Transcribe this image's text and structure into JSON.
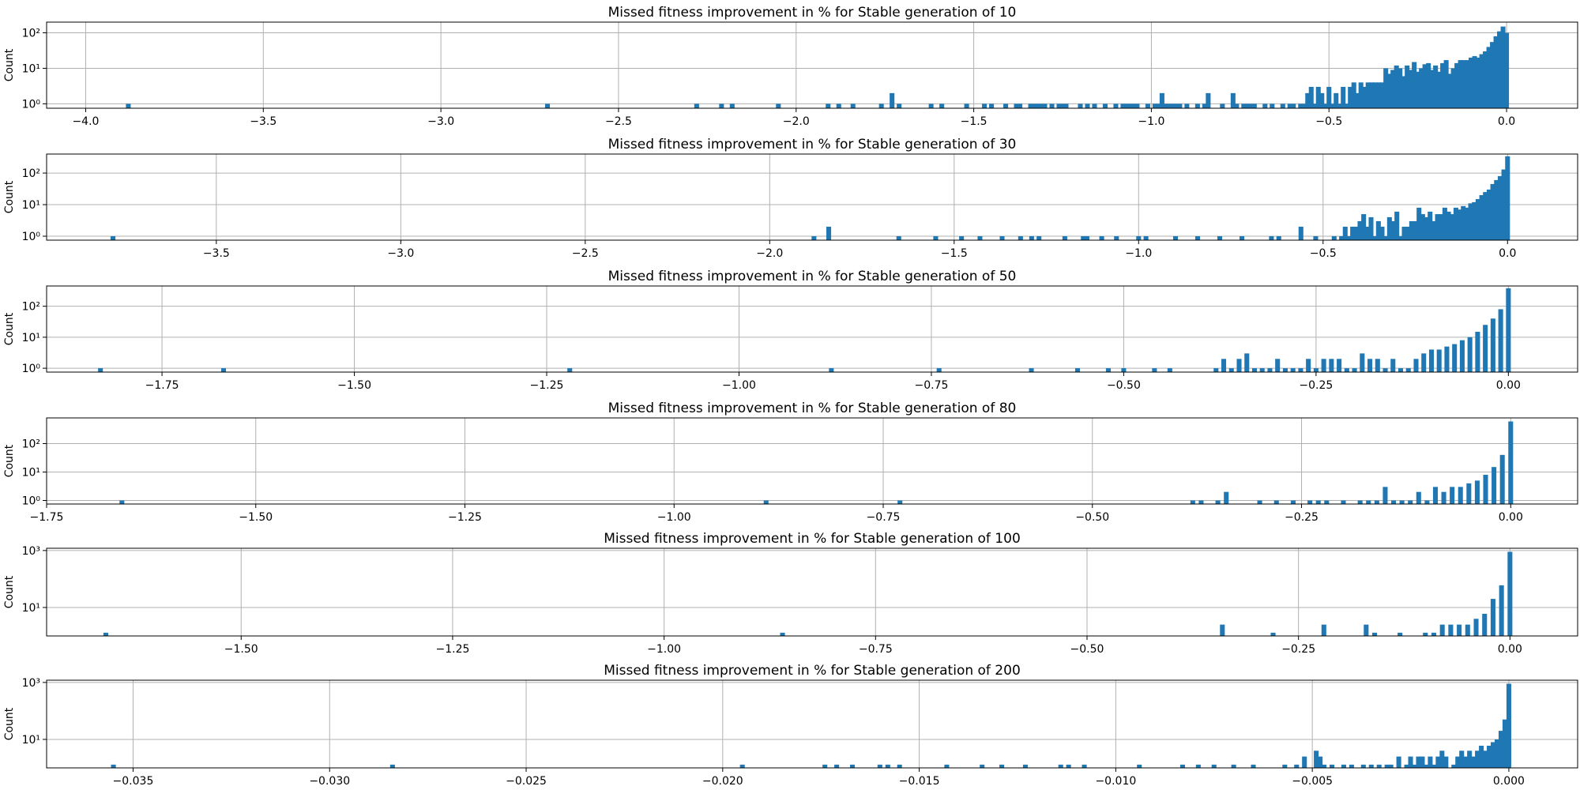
{
  "figure": {
    "bar_color": "#1f77b4",
    "grid_color": "#b0b0b0"
  },
  "chart_data": [
    {
      "type": "bar",
      "title": "Missed fitness improvement in % for Stable generation of 10",
      "xlabel": "",
      "ylabel": "Count",
      "yscale": "log",
      "grid": true,
      "xlim": [
        -4.11,
        0.2
      ],
      "xticks": [
        -4.0,
        -3.5,
        -3.0,
        -2.5,
        -2.0,
        -1.5,
        -1.0,
        -0.5,
        0.0
      ],
      "xtick_labels": [
        "−4.0",
        "−3.5",
        "−3.0",
        "−2.5",
        "−2.0",
        "−1.5",
        "−1.0",
        "−0.5",
        "0.0"
      ],
      "ylim": [
        0.75,
        200
      ],
      "yticks": [
        1,
        10,
        100
      ],
      "ytick_labels": [
        "10⁰",
        "10¹",
        "10²"
      ],
      "x": [
        -3.88,
        -2.7,
        -2.28,
        -2.21,
        -2.18,
        -2.05,
        -1.91,
        -1.88,
        -1.84,
        -1.76,
        -1.73,
        -1.71,
        -1.62,
        -1.59,
        -1.52,
        -1.47,
        -1.45,
        -1.41,
        -1.38,
        -1.37,
        -1.34,
        -1.33,
        -1.32,
        -1.31,
        -1.3,
        -1.28,
        -1.26,
        -1.25,
        -1.24,
        -1.2,
        -1.18,
        -1.16,
        -1.13,
        -1.1,
        -1.08,
        -1.07,
        -1.06,
        -1.05,
        -1.04,
        -1.01,
        -0.99,
        -0.98,
        -0.97,
        -0.96,
        -0.95,
        -0.94,
        -0.93,
        -0.92,
        -0.9,
        -0.87,
        -0.85,
        -0.84,
        -0.8,
        -0.77,
        -0.76,
        -0.74,
        -0.73,
        -0.72,
        -0.71,
        -0.68,
        -0.66,
        -0.63,
        -0.61,
        -0.6,
        -0.58,
        -0.57,
        -0.56,
        -0.55,
        -0.54,
        -0.53,
        -0.52,
        -0.51,
        -0.5,
        -0.49,
        -0.48,
        -0.47,
        -0.46,
        -0.45,
        -0.44,
        -0.43,
        -0.42,
        -0.41,
        -0.4,
        -0.39,
        -0.38,
        -0.37,
        -0.36,
        -0.35,
        -0.34,
        -0.33,
        -0.32,
        -0.31,
        -0.3,
        -0.29,
        -0.28,
        -0.27,
        -0.26,
        -0.25,
        -0.24,
        -0.23,
        -0.22,
        -0.21,
        -0.2,
        -0.19,
        -0.18,
        -0.17,
        -0.16,
        -0.15,
        -0.14,
        -0.13,
        -0.12,
        -0.11,
        -0.1,
        -0.09,
        -0.08,
        -0.07,
        -0.06,
        -0.05,
        -0.04,
        -0.03,
        -0.02,
        -0.01,
        0.0
      ],
      "values": [
        1,
        1,
        1,
        1,
        1,
        1,
        1,
        1,
        1,
        1,
        2,
        1,
        1,
        1,
        1,
        1,
        1,
        1,
        1,
        1,
        1,
        1,
        1,
        1,
        1,
        1,
        1,
        1,
        1,
        1,
        1,
        1,
        1,
        1,
        1,
        1,
        1,
        1,
        1,
        1,
        1,
        1,
        2,
        1,
        1,
        1,
        1,
        1,
        1,
        1,
        1,
        2,
        1,
        2,
        1,
        1,
        1,
        1,
        1,
        1,
        1,
        1,
        1,
        1,
        1,
        1,
        2,
        3,
        1,
        3,
        2,
        1,
        3,
        1,
        2,
        1,
        3,
        1,
        3,
        4,
        2,
        4,
        3,
        4,
        4,
        4,
        4,
        4,
        10,
        7,
        9,
        12,
        10,
        6,
        12,
        9,
        15,
        8,
        10,
        13,
        14,
        9,
        12,
        8,
        14,
        17,
        7,
        10,
        14,
        17,
        17,
        17,
        20,
        22,
        20,
        25,
        30,
        40,
        55,
        80,
        110,
        150,
        100
      ]
    },
    {
      "type": "bar",
      "title": "Missed fitness improvement in % for Stable generation of 30",
      "xlabel": "",
      "ylabel": "Count",
      "yscale": "log",
      "grid": true,
      "xlim": [
        -3.96,
        0.19
      ],
      "xticks": [
        -3.5,
        -3.0,
        -2.5,
        -2.0,
        -1.5,
        -1.0,
        -0.5,
        0.0
      ],
      "xtick_labels": [
        "−3.5",
        "−3.0",
        "−2.5",
        "−2.0",
        "−1.5",
        "−1.0",
        "−0.5",
        "0.0"
      ],
      "ylim": [
        0.75,
        400
      ],
      "yticks": [
        1,
        10,
        100
      ],
      "ytick_labels": [
        "10⁰",
        "10¹",
        "10²"
      ],
      "x": [
        -3.78,
        -1.88,
        -1.84,
        -1.65,
        -1.55,
        -1.48,
        -1.43,
        -1.37,
        -1.32,
        -1.29,
        -1.27,
        -1.2,
        -1.15,
        -1.14,
        -1.1,
        -1.06,
        -1.0,
        -0.98,
        -0.9,
        -0.84,
        -0.78,
        -0.72,
        -0.64,
        -0.62,
        -0.56,
        -0.52,
        -0.47,
        -0.45,
        -0.44,
        -0.43,
        -0.42,
        -0.41,
        -0.4,
        -0.39,
        -0.38,
        -0.37,
        -0.36,
        -0.35,
        -0.34,
        -0.33,
        -0.32,
        -0.31,
        -0.3,
        -0.29,
        -0.28,
        -0.27,
        -0.26,
        -0.25,
        -0.24,
        -0.23,
        -0.22,
        -0.21,
        -0.2,
        -0.19,
        -0.18,
        -0.17,
        -0.16,
        -0.15,
        -0.14,
        -0.13,
        -0.12,
        -0.11,
        -0.1,
        -0.09,
        -0.08,
        -0.07,
        -0.06,
        -0.05,
        -0.04,
        -0.03,
        -0.02,
        -0.01,
        0.0
      ],
      "values": [
        1,
        1,
        2,
        1,
        1,
        1,
        1,
        1,
        1,
        1,
        1,
        1,
        1,
        1,
        1,
        1,
        1,
        1,
        1,
        1,
        1,
        1,
        1,
        1,
        2,
        1,
        1,
        1,
        2,
        1,
        2,
        2,
        3,
        5,
        2,
        4,
        1,
        3,
        2,
        1,
        4,
        3,
        6,
        1,
        2,
        2,
        3,
        3,
        8,
        5,
        4,
        6,
        3,
        5,
        5,
        8,
        6,
        5,
        8,
        7,
        9,
        8,
        11,
        12,
        15,
        20,
        25,
        30,
        45,
        60,
        80,
        130,
        340
      ]
    },
    {
      "type": "bar",
      "title": "Missed fitness improvement in % for Stable generation of 50",
      "xlabel": "",
      "ylabel": "Count",
      "yscale": "log",
      "grid": true,
      "xlim": [
        -1.9,
        0.09
      ],
      "xticks": [
        -1.75,
        -1.5,
        -1.25,
        -1.0,
        -0.75,
        -0.5,
        -0.25,
        0.0
      ],
      "xtick_labels": [
        "−1.75",
        "−1.50",
        "−1.25",
        "−1.00",
        "−0.75",
        "−0.50",
        "−0.25",
        "0.00"
      ],
      "ylim": [
        0.75,
        450
      ],
      "yticks": [
        1,
        10,
        100
      ],
      "ytick_labels": [
        "10⁰",
        "10¹",
        "10²"
      ],
      "x": [
        -1.83,
        -1.67,
        -1.22,
        -0.88,
        -0.74,
        -0.62,
        -0.56,
        -0.52,
        -0.5,
        -0.46,
        -0.44,
        -0.38,
        -0.37,
        -0.36,
        -0.35,
        -0.34,
        -0.33,
        -0.32,
        -0.31,
        -0.3,
        -0.29,
        -0.28,
        -0.27,
        -0.26,
        -0.25,
        -0.24,
        -0.23,
        -0.22,
        -0.21,
        -0.2,
        -0.19,
        -0.18,
        -0.17,
        -0.16,
        -0.15,
        -0.14,
        -0.13,
        -0.12,
        -0.11,
        -0.1,
        -0.09,
        -0.08,
        -0.07,
        -0.06,
        -0.05,
        -0.04,
        -0.03,
        -0.02,
        -0.01,
        0.0
      ],
      "values": [
        1,
        1,
        1,
        1,
        1,
        1,
        1,
        1,
        1,
        1,
        1,
        1,
        2,
        1,
        2,
        3,
        1,
        1,
        1,
        2,
        1,
        1,
        1,
        2,
        1,
        2,
        2,
        2,
        1,
        1,
        3,
        2,
        2,
        1,
        2,
        1,
        1,
        2,
        3,
        4,
        4,
        5,
        6,
        8,
        10,
        15,
        25,
        40,
        80,
        380
      ]
    },
    {
      "type": "bar",
      "title": "Missed fitness improvement in % for Stable generation of 80",
      "xlabel": "",
      "ylabel": "Count",
      "yscale": "log",
      "grid": true,
      "xlim": [
        -1.75,
        0.08
      ],
      "xticks": [
        -1.75,
        -1.5,
        -1.25,
        -1.0,
        -0.75,
        -0.5,
        -0.25,
        0.0
      ],
      "xtick_labels": [
        "−1.75",
        "−1.50",
        "−1.25",
        "−1.00",
        "−0.75",
        "−0.50",
        "−0.25",
        "0.00"
      ],
      "ylim": [
        0.75,
        800
      ],
      "yticks": [
        1,
        10,
        100
      ],
      "ytick_labels": [
        "10⁰",
        "10¹",
        "10²"
      ],
      "x": [
        -1.66,
        -0.89,
        -0.73,
        -0.38,
        -0.37,
        -0.35,
        -0.34,
        -0.3,
        -0.28,
        -0.26,
        -0.24,
        -0.23,
        -0.22,
        -0.2,
        -0.18,
        -0.17,
        -0.16,
        -0.15,
        -0.14,
        -0.13,
        -0.12,
        -0.11,
        -0.1,
        -0.09,
        -0.08,
        -0.07,
        -0.06,
        -0.05,
        -0.04,
        -0.03,
        -0.02,
        -0.01,
        0.0
      ],
      "values": [
        1,
        1,
        1,
        1,
        1,
        1,
        2,
        1,
        1,
        1,
        1,
        1,
        1,
        1,
        1,
        1,
        1,
        3,
        1,
        1,
        1,
        2,
        1,
        3,
        2,
        3,
        3,
        4,
        5,
        8,
        15,
        40,
        600
      ]
    },
    {
      "type": "bar",
      "title": "Missed fitness improvement in % for Stable generation of 100",
      "xlabel": "",
      "ylabel": "Count",
      "yscale": "log",
      "grid": true,
      "xlim": [
        -1.73,
        0.08
      ],
      "xticks": [
        -1.5,
        -1.25,
        -1.0,
        -0.75,
        -0.5,
        -0.25,
        0.0
      ],
      "xtick_labels": [
        "−1.50",
        "−1.25",
        "−1.00",
        "−0.75",
        "−0.50",
        "−0.25",
        "0.00"
      ],
      "ylim": [
        1,
        1200
      ],
      "yticks": [
        10,
        1000
      ],
      "ytick_labels": [
        "10¹",
        "10³"
      ],
      "x": [
        -1.66,
        -0.86,
        -0.34,
        -0.28,
        -0.22,
        -0.17,
        -0.16,
        -0.13,
        -0.1,
        -0.09,
        -0.08,
        -0.07,
        -0.06,
        -0.05,
        -0.04,
        -0.03,
        -0.02,
        -0.01,
        0.0
      ],
      "values": [
        1.3,
        1.3,
        2.5,
        1.3,
        2.5,
        2.5,
        1.3,
        1.3,
        1.3,
        1.3,
        2.5,
        2.5,
        2.5,
        2.5,
        4,
        6,
        20,
        60,
        900
      ]
    },
    {
      "type": "bar",
      "title": "Missed fitness improvement in % for Stable generation of 200",
      "xlabel": "",
      "ylabel": "Count",
      "yscale": "log",
      "grid": true,
      "xlim": [
        -0.0372,
        0.00175
      ],
      "xticks": [
        -0.035,
        -0.03,
        -0.025,
        -0.02,
        -0.015,
        -0.01,
        -0.005,
        0.0
      ],
      "xtick_labels": [
        "−0.035",
        "−0.030",
        "−0.025",
        "−0.020",
        "−0.015",
        "−0.010",
        "−0.005",
        "0.000"
      ],
      "ylim": [
        1,
        1200
      ],
      "yticks": [
        10,
        1000
      ],
      "ytick_labels": [
        "10¹",
        "10³"
      ],
      "x": [
        -0.0355,
        -0.0284,
        -0.0195,
        -0.0174,
        -0.0171,
        -0.0167,
        -0.016,
        -0.0158,
        -0.0155,
        -0.0143,
        -0.0134,
        -0.0129,
        -0.0123,
        -0.0114,
        -0.0112,
        -0.0108,
        -0.0094,
        -0.0083,
        -0.0079,
        -0.0075,
        -0.007,
        -0.0065,
        -0.0057,
        -0.0054,
        -0.0052,
        -0.0049,
        -0.0048,
        -0.0047,
        -0.0045,
        -0.0042,
        -0.004,
        -0.0037,
        -0.0035,
        -0.0033,
        -0.0031,
        -0.003,
        -0.0028,
        -0.0026,
        -0.0025,
        -0.0024,
        -0.0023,
        -0.0022,
        -0.0021,
        -0.002,
        -0.0019,
        -0.0018,
        -0.0017,
        -0.0016,
        -0.0014,
        -0.0013,
        -0.0012,
        -0.0011,
        -0.001,
        -0.0009,
        -0.0008,
        -0.0007,
        -0.0006,
        -0.0005,
        -0.0004,
        -0.0003,
        -0.0002,
        -0.0001,
        0.0
      ],
      "values": [
        1.3,
        1.3,
        1.3,
        1.3,
        1.3,
        1.3,
        1.3,
        1.3,
        1.3,
        1.3,
        1.3,
        1.3,
        1.3,
        1.3,
        1.3,
        1.3,
        1.3,
        1.3,
        1.3,
        1.3,
        1.3,
        1.3,
        1.3,
        1.3,
        2.5,
        4,
        2.5,
        1.3,
        1.3,
        1.3,
        1.3,
        1.3,
        1.3,
        1.3,
        1.3,
        1.3,
        2.5,
        1.3,
        2.5,
        1.3,
        2.5,
        2.5,
        1.3,
        2.5,
        1.3,
        2.5,
        4,
        2.5,
        1.3,
        2.5,
        4,
        2.5,
        4,
        2.5,
        4,
        6,
        4,
        6,
        8,
        10,
        20,
        50,
        900
      ]
    }
  ]
}
